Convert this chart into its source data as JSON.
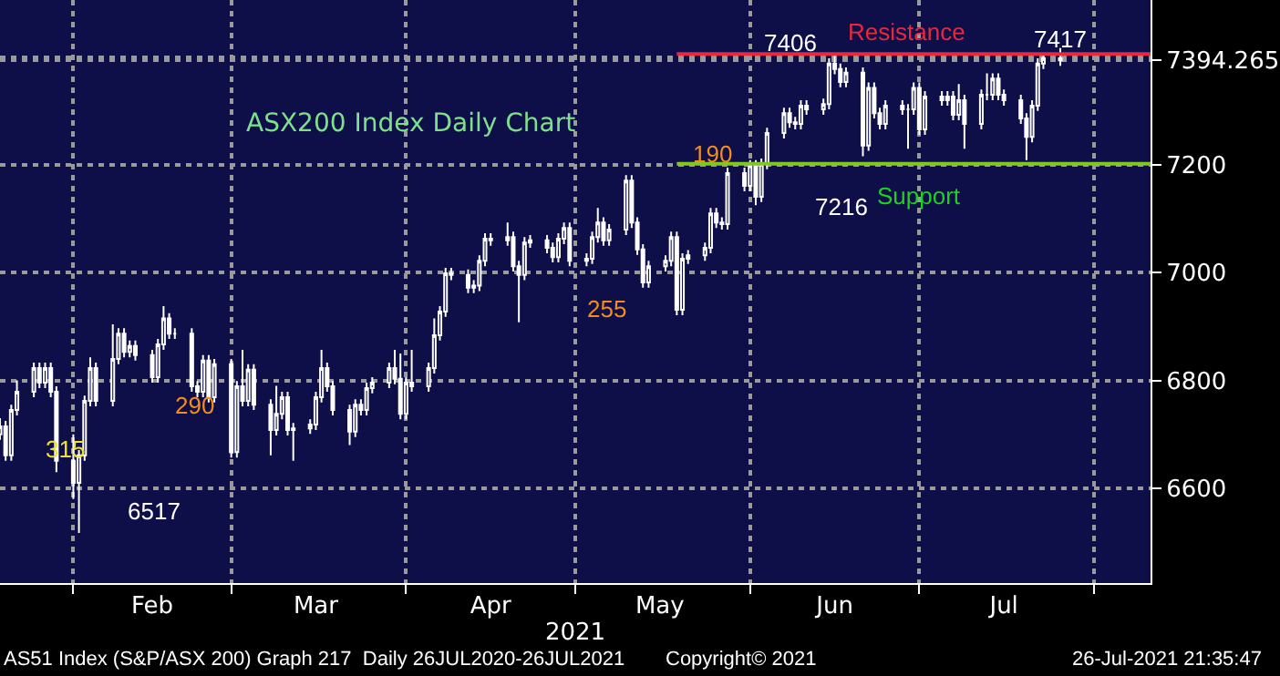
{
  "chart_data": {
    "type": "candlestick",
    "title": "ASX200 Index Daily Chart",
    "xlabel": "2021",
    "color": "#ffffff",
    "x": [
      "2021-01-19",
      "2021-01-20",
      "2021-01-21",
      "2021-01-22",
      "2021-01-25",
      "2021-01-26",
      "2021-01-27",
      "2021-01-28",
      "2021-01-29",
      "2021-02-01",
      "2021-02-02",
      "2021-02-03",
      "2021-02-04",
      "2021-02-05",
      "2021-02-08",
      "2021-02-09",
      "2021-02-10",
      "2021-02-11",
      "2021-02-12",
      "2021-02-15",
      "2021-02-16",
      "2021-02-17",
      "2021-02-18",
      "2021-02-19",
      "2021-02-22",
      "2021-02-23",
      "2021-02-24",
      "2021-02-25",
      "2021-02-26",
      "2021-03-01",
      "2021-03-02",
      "2021-03-03",
      "2021-03-04",
      "2021-03-05",
      "2021-03-08",
      "2021-03-09",
      "2021-03-10",
      "2021-03-11",
      "2021-03-12",
      "2021-03-15",
      "2021-03-16",
      "2021-03-17",
      "2021-03-18",
      "2021-03-19",
      "2021-03-22",
      "2021-03-23",
      "2021-03-24",
      "2021-03-25",
      "2021-03-26",
      "2021-03-29",
      "2021-03-30",
      "2021-03-31",
      "2021-04-01",
      "2021-04-02",
      "2021-04-05",
      "2021-04-06",
      "2021-04-07",
      "2021-04-08",
      "2021-04-09",
      "2021-04-12",
      "2021-04-13",
      "2021-04-14",
      "2021-04-15",
      "2021-04-16",
      "2021-04-19",
      "2021-04-20",
      "2021-04-21",
      "2021-04-22",
      "2021-04-23",
      "2021-04-26",
      "2021-04-27",
      "2021-04-28",
      "2021-04-29",
      "2021-04-30",
      "2021-05-03",
      "2021-05-04",
      "2021-05-05",
      "2021-05-06",
      "2021-05-07",
      "2021-05-10",
      "2021-05-11",
      "2021-05-12",
      "2021-05-13",
      "2021-05-14",
      "2021-05-17",
      "2021-05-18",
      "2021-05-19",
      "2021-05-20",
      "2021-05-21",
      "2021-05-24",
      "2021-05-25",
      "2021-05-26",
      "2021-05-27",
      "2021-05-28",
      "2021-05-31",
      "2021-06-01",
      "2021-06-02",
      "2021-06-03",
      "2021-06-04",
      "2021-06-07",
      "2021-06-08",
      "2021-06-09",
      "2021-06-10",
      "2021-06-11",
      "2021-06-14",
      "2021-06-15",
      "2021-06-16",
      "2021-06-17",
      "2021-06-18",
      "2021-06-21",
      "2021-06-22",
      "2021-06-23",
      "2021-06-24",
      "2021-06-25",
      "2021-06-28",
      "2021-06-29",
      "2021-06-30",
      "2021-07-01",
      "2021-07-02",
      "2021-07-05",
      "2021-07-06",
      "2021-07-07",
      "2021-07-08",
      "2021-07-09",
      "2021-07-12",
      "2021-07-13",
      "2021-07-14",
      "2021-07-15",
      "2021-07-16",
      "2021-07-19",
      "2021-07-20",
      "2021-07-21",
      "2021-07-22",
      "2021-07-23",
      "2021-07-26"
    ],
    "ohlc": [
      [
        6700,
        6730,
        6690,
        6715
      ],
      [
        6715,
        6725,
        6651,
        6661
      ],
      [
        6661,
        6755,
        6651,
        6745
      ],
      [
        6745,
        6800,
        6735,
        6779
      ],
      [
        6779,
        6833,
        6769,
        6823
      ],
      [
        6823,
        6833,
        6786,
        6796
      ],
      [
        6796,
        6833,
        6786,
        6823
      ],
      [
        6823,
        6833,
        6769,
        6779
      ],
      [
        6779,
        6789,
        6630,
        6651
      ],
      [
        6651,
        6700,
        6580,
        6610
      ],
      [
        6610,
        6671,
        6517,
        6661
      ],
      [
        6661,
        6772,
        6651,
        6762
      ],
      [
        6762,
        6843,
        6752,
        6823
      ],
      [
        6823,
        6833,
        6752,
        6762
      ],
      [
        6762,
        6904,
        6752,
        6840
      ],
      [
        6840,
        6897,
        6830,
        6887
      ],
      [
        6887,
        6897,
        6843,
        6853
      ],
      [
        6853,
        6874,
        6843,
        6864
      ],
      [
        6864,
        6874,
        6837,
        6847
      ],
      [
        6847,
        6857,
        6796,
        6806
      ],
      [
        6806,
        6877,
        6796,
        6867
      ],
      [
        6867,
        6938,
        6857,
        6915
      ],
      [
        6915,
        6925,
        6877,
        6887
      ],
      [
        6887,
        6897,
        6877,
        6887
      ],
      [
        6887,
        6897,
        6779,
        6789
      ],
      [
        6789,
        6799,
        6769,
        6779
      ],
      [
        6779,
        6847,
        6769,
        6837
      ],
      [
        6837,
        6847,
        6759,
        6769
      ],
      [
        6769,
        6840,
        6759,
        6830
      ],
      [
        6830,
        6840,
        6657,
        6667
      ],
      [
        6667,
        6799,
        6657,
        6789
      ],
      [
        6789,
        6857,
        6752,
        6762
      ],
      [
        6762,
        6830,
        6752,
        6820
      ],
      [
        6820,
        6830,
        6745,
        6755
      ],
      [
        6755,
        6765,
        6661,
        6708
      ],
      [
        6708,
        6790,
        6698,
        6738
      ],
      [
        6738,
        6779,
        6728,
        6769
      ],
      [
        6769,
        6779,
        6698,
        6708
      ],
      [
        6708,
        6721,
        6651,
        6711
      ],
      [
        6711,
        6728,
        6701,
        6718
      ],
      [
        6718,
        6779,
        6708,
        6769
      ],
      [
        6769,
        6857,
        6759,
        6823
      ],
      [
        6823,
        6833,
        6779,
        6789
      ],
      [
        6789,
        6799,
        6735,
        6745
      ],
      [
        6745,
        6755,
        6680,
        6705
      ],
      [
        6705,
        6765,
        6695,
        6755
      ],
      [
        6755,
        6765,
        6735,
        6745
      ],
      [
        6745,
        6796,
        6735,
        6786
      ],
      [
        6786,
        6806,
        6776,
        6796
      ],
      [
        6796,
        6833,
        6786,
        6823
      ],
      [
        6823,
        6857,
        6793,
        6803
      ],
      [
        6803,
        6850,
        6728,
        6738
      ],
      [
        6738,
        6806,
        6728,
        6796
      ],
      [
        6796,
        6857,
        6779,
        6789
      ],
      [
        6789,
        6833,
        6779,
        6823
      ],
      [
        6823,
        6915,
        6813,
        6884
      ],
      [
        6884,
        6938,
        6874,
        6928
      ],
      [
        6928,
        7009,
        6918,
        6999
      ],
      [
        6999,
        7009,
        6986,
        6996
      ],
      [
        6996,
        7006,
        6962,
        6972
      ],
      [
        6972,
        6986,
        6962,
        6976
      ],
      [
        6976,
        7032,
        6966,
        7022
      ],
      [
        7022,
        7073,
        7012,
        7063
      ],
      [
        7063,
        7073,
        7050,
        7060
      ],
      [
        7060,
        7093,
        7050,
        7066
      ],
      [
        7066,
        7076,
        7002,
        7012
      ],
      [
        7012,
        7022,
        6908,
        6996
      ],
      [
        6996,
        7066,
        6986,
        7056
      ],
      [
        7056,
        7070,
        7046,
        7060
      ],
      [
        7060,
        7070,
        7036,
        7046
      ],
      [
        7046,
        7056,
        7019,
        7029
      ],
      [
        7029,
        7073,
        7019,
        7063
      ],
      [
        7063,
        7093,
        7053,
        7083
      ],
      [
        7083,
        7093,
        7012,
        7022
      ],
      [
        7022,
        7036,
        7012,
        7026
      ],
      [
        7026,
        7076,
        7016,
        7066
      ],
      [
        7066,
        7120,
        7056,
        7093
      ],
      [
        7093,
        7103,
        7050,
        7060
      ],
      [
        7060,
        7090,
        7050,
        7080
      ],
      [
        7080,
        7181,
        7070,
        7171
      ],
      [
        7171,
        7181,
        7083,
        7093
      ],
      [
        7093,
        7103,
        7033,
        7043
      ],
      [
        7043,
        7053,
        6972,
        6982
      ],
      [
        6982,
        7022,
        6972,
        7012
      ],
      [
        7012,
        7032,
        7002,
        7022
      ],
      [
        7022,
        7076,
        7012,
        7066
      ],
      [
        7066,
        7076,
        6921,
        6931
      ],
      [
        6931,
        7036,
        6921,
        7026
      ],
      [
        7026,
        7042,
        7016,
        7032
      ],
      [
        7032,
        7056,
        7022,
        7046
      ],
      [
        7046,
        7120,
        7036,
        7110
      ],
      [
        7110,
        7120,
        7083,
        7093
      ],
      [
        7093,
        7103,
        7080,
        7090
      ],
      [
        7090,
        7195,
        7080,
        7185
      ],
      [
        7185,
        7195,
        7151,
        7161
      ],
      [
        7161,
        7209,
        7151,
        7199
      ],
      [
        7199,
        7209,
        7125,
        7141
      ],
      [
        7141,
        7212,
        7131,
        7202
      ],
      [
        7202,
        7269,
        7192,
        7259
      ],
      [
        7259,
        7306,
        7249,
        7296
      ],
      [
        7296,
        7306,
        7269,
        7279
      ],
      [
        7279,
        7289,
        7266,
        7276
      ],
      [
        7276,
        7320,
        7266,
        7310
      ],
      [
        7310,
        7320,
        7293,
        7303
      ],
      [
        7303,
        7323,
        7293,
        7313
      ],
      [
        7313,
        7398,
        7303,
        7388
      ],
      [
        7388,
        7406,
        7368,
        7378
      ],
      [
        7378,
        7388,
        7344,
        7354
      ],
      [
        7354,
        7381,
        7344,
        7371
      ],
      [
        7371,
        7381,
        7216,
        7236
      ],
      [
        7236,
        7353,
        7226,
        7343
      ],
      [
        7343,
        7353,
        7286,
        7296
      ],
      [
        7296,
        7306,
        7266,
        7276
      ],
      [
        7276,
        7320,
        7266,
        7310
      ],
      [
        7310,
        7320,
        7293,
        7303
      ],
      [
        7303,
        7313,
        7230,
        7303
      ],
      [
        7303,
        7353,
        7293,
        7343
      ],
      [
        7343,
        7353,
        7256,
        7266
      ],
      [
        7266,
        7337,
        7256,
        7327
      ],
      [
        7327,
        7337,
        7310,
        7320
      ],
      [
        7320,
        7337,
        7310,
        7327
      ],
      [
        7327,
        7337,
        7283,
        7293
      ],
      [
        7293,
        7350,
        7283,
        7320
      ],
      [
        7320,
        7330,
        7230,
        7276
      ],
      [
        7276,
        7340,
        7266,
        7330
      ],
      [
        7330,
        7370,
        7320,
        7330
      ],
      [
        7330,
        7370,
        7320,
        7360
      ],
      [
        7360,
        7370,
        7320,
        7330
      ],
      [
        7330,
        7340,
        7310,
        7320
      ],
      [
        7320,
        7330,
        7276,
        7286
      ],
      [
        7286,
        7296,
        7209,
        7252
      ],
      [
        7252,
        7320,
        7242,
        7310
      ],
      [
        7310,
        7398,
        7300,
        7388
      ],
      [
        7388,
        7404,
        7378,
        7398
      ],
      [
        7398,
        7417,
        7384,
        7394
      ]
    ],
    "series": [
      {
        "type": "line",
        "x": [
          "2021-05-19",
          "2021-08-11"
        ],
        "values": [
          7406,
          7406
        ],
        "color": "#e8283c"
      },
      {
        "type": "line",
        "x": [
          "2021-05-19",
          "2021-08-11"
        ],
        "values": [
          7202,
          7202
        ],
        "color": "#7ec820"
      }
    ],
    "xlim": [
      "2021-01-19",
      "2021-08-11"
    ],
    "xticks": [
      {
        "value": "2021-02-01",
        "label": null
      },
      {
        "value": "2021-02-15",
        "label": "Feb"
      },
      {
        "value": "2021-03-01",
        "label": null
      },
      {
        "value": "2021-03-16",
        "label": "Mar"
      },
      {
        "value": "2021-04-01",
        "label": null
      },
      {
        "value": "2021-04-16",
        "label": "Apr"
      },
      {
        "value": "2021-05-01",
        "label": null
      },
      {
        "value": "2021-05-16",
        "label": "May"
      },
      {
        "value": "2021-06-01",
        "label": null
      },
      {
        "value": "2021-06-16",
        "label": "Jun"
      },
      {
        "value": "2021-07-01",
        "label": null
      },
      {
        "value": "2021-07-16",
        "label": "Jul"
      },
      {
        "value": "2021-08-01",
        "label": null
      }
    ],
    "ylim": [
      6424,
      7506
    ],
    "yticks": [
      6600,
      6800,
      7000,
      7200,
      {
        "value": 7400,
        "label": null
      },
      {
        "value": 7394.265,
        "label": "7394.265"
      }
    ],
    "grid": true,
    "annotations": [
      "315",
      "6517",
      "290",
      "255",
      "190",
      "7406",
      "7216",
      "Resistance",
      "Support",
      "7417",
      "AS51 Index (S&P/ASX 200) Graph 217  Daily 26JUL2020-26JUL2021",
      "Copyright© 2021",
      "26-Jul-2021 21:35:47"
    ]
  }
}
